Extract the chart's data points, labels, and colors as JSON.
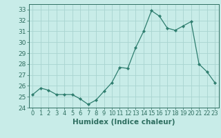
{
  "x": [
    0,
    1,
    2,
    3,
    4,
    5,
    6,
    7,
    8,
    9,
    10,
    11,
    12,
    13,
    14,
    15,
    16,
    17,
    18,
    19,
    20,
    21,
    22,
    23
  ],
  "y": [
    25.2,
    25.8,
    25.6,
    25.2,
    25.2,
    25.2,
    24.8,
    24.3,
    24.7,
    25.5,
    26.3,
    27.7,
    27.6,
    29.5,
    31.0,
    32.9,
    32.4,
    31.3,
    31.1,
    31.5,
    31.9,
    28.0,
    27.3,
    26.3
  ],
  "line_color": "#2e7d6e",
  "marker": "D",
  "marker_size": 2.2,
  "bg_color": "#c8ece8",
  "grid_color": "#a8d4d0",
  "xlabel": "Humidex (Indice chaleur)",
  "ylim": [
    24,
    33.5
  ],
  "xlim": [
    -0.5,
    23.5
  ],
  "yticks": [
    24,
    25,
    26,
    27,
    28,
    29,
    30,
    31,
    32,
    33
  ],
  "xticks": [
    0,
    1,
    2,
    3,
    4,
    5,
    6,
    7,
    8,
    9,
    10,
    11,
    12,
    13,
    14,
    15,
    16,
    17,
    18,
    19,
    20,
    21,
    22,
    23
  ],
  "tick_color": "#2e6e60",
  "y_label_fontsize": 6.5,
  "x_label_fontsize": 6.0,
  "xlabel_fontsize": 7.5,
  "linewidth": 0.9
}
